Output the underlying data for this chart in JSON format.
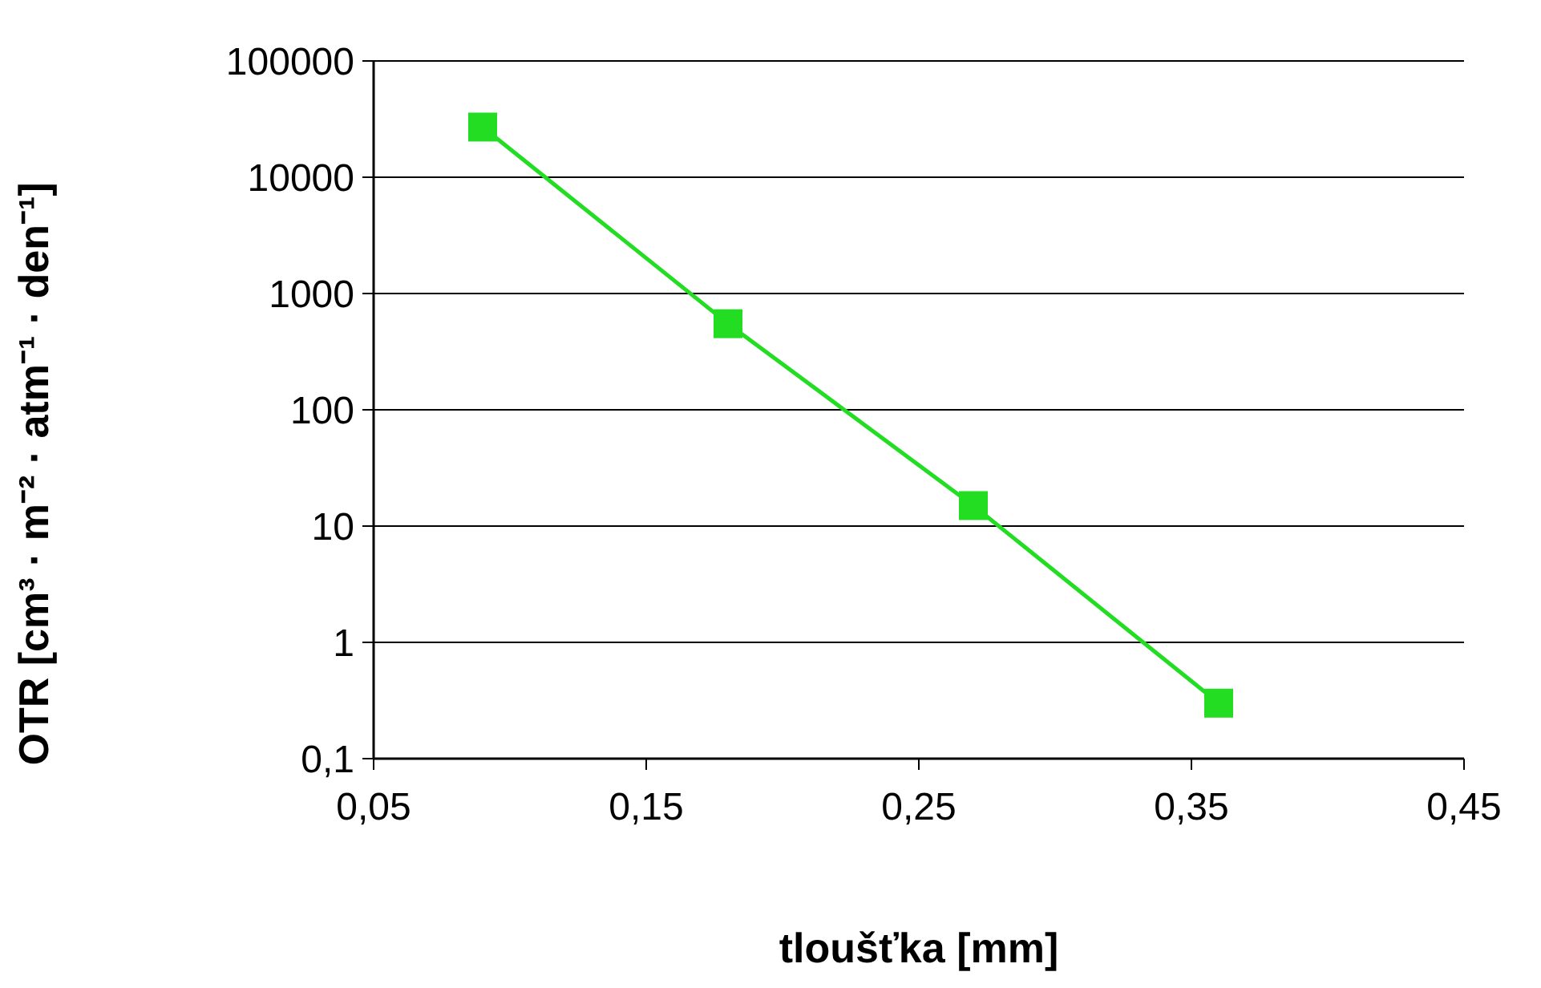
{
  "chart_data": {
    "type": "line",
    "xlabel": "tloušťka [mm]",
    "ylabel": "OTR [cm³ · m⁻² · atm⁻¹ · den⁻¹]",
    "x": [
      0.09,
      0.18,
      0.27,
      0.36
    ],
    "series": [
      {
        "color": "#22dd22",
        "values": [
          27000,
          550,
          15,
          0.3
        ]
      }
    ],
    "log": "y",
    "grid": "y",
    "marker": "square",
    "line_style": "solid",
    "xlim": [
      0.05,
      0.45
    ],
    "xticks": [
      {
        "value": 0.05,
        "label": "0,05"
      },
      {
        "value": 0.15,
        "label": "0,15"
      },
      {
        "value": 0.25,
        "label": "0,25"
      },
      {
        "value": 0.35,
        "label": "0,35"
      },
      {
        "value": 0.45,
        "label": "0,45"
      }
    ],
    "ylim": [
      0.1,
      100000
    ],
    "yticks": [
      {
        "value": 0.1,
        "label": "0,1"
      },
      1,
      10,
      100,
      1000,
      10000,
      100000
    ]
  }
}
